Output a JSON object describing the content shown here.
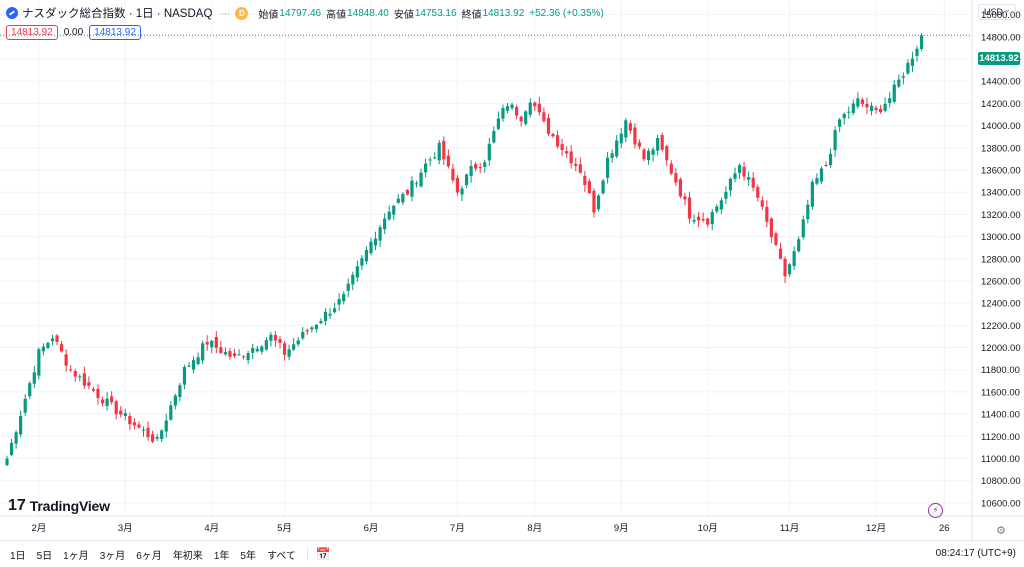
{
  "symbol": {
    "title": "ナスダック総合指数 · 1日 · NASDAQ",
    "badge": "D",
    "open_label": "始値",
    "open": "14797.46",
    "high_label": "高値",
    "high": "14848.40",
    "low_label": "安値",
    "low": "14753.16",
    "close_label": "終値",
    "close": "14813.92",
    "change": "+52.36 (+0.35%)"
  },
  "price_boxes": {
    "sell": "14813.92",
    "spread": "0.00",
    "buy": "14813.92"
  },
  "currency": "USD",
  "last_price": "14813.92",
  "logo": {
    "mark": "17",
    "text": "TradingView"
  },
  "bottom_bar": {
    "ranges": [
      "1日",
      "5日",
      "1ヶ月",
      "3ヶ月",
      "6ヶ月",
      "年初来",
      "1年",
      "5年",
      "すべて"
    ],
    "clock": "08:24:17 (UTC+9)"
  },
  "colors": {
    "up": "#089981",
    "down": "#f23645",
    "grid": "#f0f3fa",
    "accent": "#2962ff"
  },
  "icons": [
    "symbol-icon",
    "calendar-range-icon",
    "lightning-icon",
    "gear-icon"
  ],
  "chart_data": {
    "type": "candlestick",
    "title": "ナスダック総合指数 · 1日 · NASDAQ",
    "ylim": [
      10500,
      15150
    ],
    "y_ticks": [
      15000,
      14800,
      14600,
      14400,
      14200,
      14000,
      13800,
      13600,
      13400,
      13200,
      13000,
      12800,
      12600,
      12400,
      12200,
      12000,
      11800,
      11600,
      11400,
      11200,
      11000,
      10800,
      10600
    ],
    "x_ticks": [
      "2月",
      "3月",
      "4月",
      "5月",
      "6月",
      "7月",
      "8月",
      "9月",
      "10月",
      "11月",
      "12月",
      "26"
    ],
    "x_tick_index": [
      7,
      26,
      45,
      61,
      80,
      99,
      116,
      135,
      154,
      172,
      191,
      206
    ],
    "n_bars": 205,
    "key_closes": [
      [
        0,
        11000
      ],
      [
        7,
        11950
      ],
      [
        10,
        12100
      ],
      [
        14,
        11800
      ],
      [
        22,
        11500
      ],
      [
        25,
        11400
      ],
      [
        33,
        11150
      ],
      [
        39,
        11800
      ],
      [
        44,
        12050
      ],
      [
        50,
        11900
      ],
      [
        58,
        12100
      ],
      [
        61,
        11950
      ],
      [
        66,
        12150
      ],
      [
        70,
        12300
      ],
      [
        74,
        12450
      ],
      [
        77,
        12700
      ],
      [
        80,
        12950
      ],
      [
        84,
        13250
      ],
      [
        88,
        13400
      ],
      [
        92,
        13650
      ],
      [
        95,
        13800
      ],
      [
        99,
        13400
      ],
      [
        102,
        13600
      ],
      [
        105,
        13700
      ],
      [
        108,
        14050
      ],
      [
        110,
        14200
      ],
      [
        113,
        14080
      ],
      [
        115,
        14250
      ],
      [
        118,
        14010
      ],
      [
        122,
        13800
      ],
      [
        126,
        13600
      ],
      [
        129,
        13250
      ],
      [
        132,
        13700
      ],
      [
        136,
        14050
      ],
      [
        140,
        13700
      ],
      [
        143,
        13850
      ],
      [
        147,
        13500
      ],
      [
        150,
        13200
      ],
      [
        154,
        13150
      ],
      [
        158,
        13400
      ],
      [
        161,
        13650
      ],
      [
        165,
        13350
      ],
      [
        168,
        13000
      ],
      [
        171,
        12650
      ],
      [
        174,
        12950
      ],
      [
        177,
        13450
      ],
      [
        180,
        13650
      ],
      [
        183,
        14050
      ],
      [
        187,
        14220
      ],
      [
        191,
        14120
      ],
      [
        194,
        14250
      ],
      [
        196,
        14400
      ],
      [
        198,
        14550
      ],
      [
        200,
        14720
      ],
      [
        201,
        14813.92
      ]
    ]
  }
}
